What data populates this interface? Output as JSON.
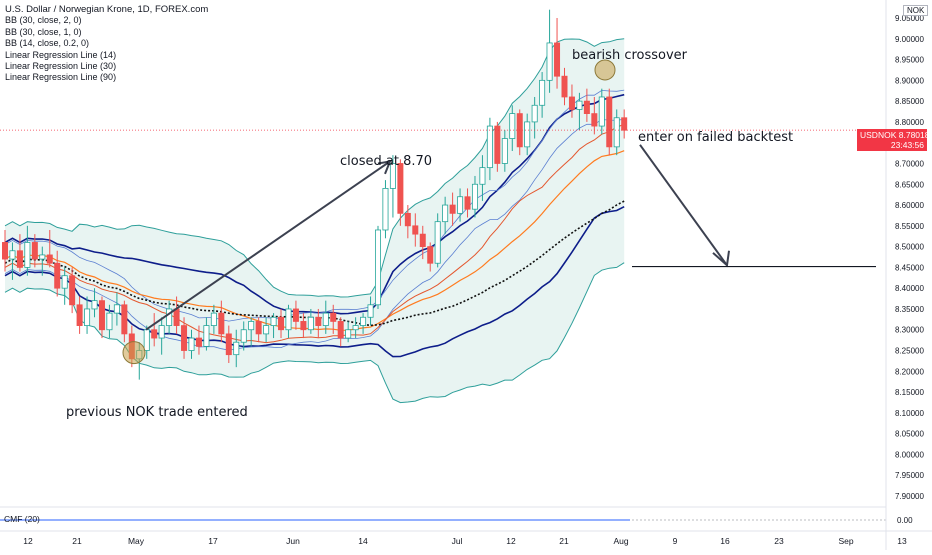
{
  "header": {
    "title": "U.S. Dollar / Norwegian Krone, 1D, FOREX.com",
    "indicators": [
      "BB (30, close, 2, 0)",
      "BB (30, close, 1, 0)",
      "BB (14, close, 0.2, 0)",
      "Linear Regression Line (14)",
      "Linear Regression Line (30)",
      "Linear Regression Line (90)"
    ],
    "currency_badge": "NOK"
  },
  "annotations": {
    "previous_trade": "previous NOK trade entered",
    "closed_at": "closed at 8.70",
    "bearish_crossover": "bearish crossover",
    "enter_failed_backtest": "enter on failed backtest"
  },
  "price_tag": {
    "symbol": "USDNOK",
    "price": "8.78018",
    "countdown": "23:43:56"
  },
  "cmf": {
    "label": "CMF (20)",
    "value_label": "0.00",
    "color": "#2962ff"
  },
  "colors": {
    "up": "#26a69a",
    "down": "#ef5350",
    "bb_outer": "#2e9f9a",
    "bb_fill": "#e6f3f1",
    "bb_basis": "#ff7b1f",
    "regression_fast": "#1f3fd0",
    "regression_slow": "#0d1d8a",
    "regression_90": "#101010",
    "price_line": "#f23645",
    "highlight": "#c9a14a"
  },
  "chart_data": {
    "type": "candlestick",
    "symbol": "USD/NOK",
    "y_ticks": [
      "9.05000",
      "9.00000",
      "8.95000",
      "8.90000",
      "8.85000",
      "8.80000",
      "8.75000",
      "8.70000",
      "8.65000",
      "8.60000",
      "8.55000",
      "8.50000",
      "8.45000",
      "8.40000",
      "8.35000",
      "8.30000",
      "8.25000",
      "8.20000",
      "8.15000",
      "8.10000",
      "8.05000",
      "8.00000",
      "7.95000",
      "7.90000"
    ],
    "ylim": [
      7.88,
      9.07
    ],
    "x_ticks": [
      "12",
      "21",
      "May",
      "17",
      "Jun",
      "14",
      "Jul",
      "12",
      "21",
      "Aug",
      "9",
      "16",
      "23",
      "Sep",
      "13"
    ],
    "candles": [
      {
        "o": 8.51,
        "h": 8.54,
        "l": 8.44,
        "c": 8.47
      },
      {
        "o": 8.47,
        "h": 8.51,
        "l": 8.42,
        "c": 8.49
      },
      {
        "o": 8.49,
        "h": 8.53,
        "l": 8.44,
        "c": 8.45
      },
      {
        "o": 8.45,
        "h": 8.55,
        "l": 8.43,
        "c": 8.51
      },
      {
        "o": 8.51,
        "h": 8.53,
        "l": 8.45,
        "c": 8.47
      },
      {
        "o": 8.47,
        "h": 8.5,
        "l": 8.43,
        "c": 8.48
      },
      {
        "o": 8.48,
        "h": 8.54,
        "l": 8.45,
        "c": 8.46
      },
      {
        "o": 8.46,
        "h": 8.49,
        "l": 8.38,
        "c": 8.4
      },
      {
        "o": 8.4,
        "h": 8.45,
        "l": 8.36,
        "c": 8.43
      },
      {
        "o": 8.43,
        "h": 8.45,
        "l": 8.34,
        "c": 8.36
      },
      {
        "o": 8.36,
        "h": 8.38,
        "l": 8.29,
        "c": 8.31
      },
      {
        "o": 8.31,
        "h": 8.38,
        "l": 8.29,
        "c": 8.35
      },
      {
        "o": 8.35,
        "h": 8.4,
        "l": 8.33,
        "c": 8.37
      },
      {
        "o": 8.37,
        "h": 8.38,
        "l": 8.28,
        "c": 8.3
      },
      {
        "o": 8.3,
        "h": 8.36,
        "l": 8.28,
        "c": 8.34
      },
      {
        "o": 8.34,
        "h": 8.39,
        "l": 8.31,
        "c": 8.36
      },
      {
        "o": 8.36,
        "h": 8.37,
        "l": 8.27,
        "c": 8.29
      },
      {
        "o": 8.29,
        "h": 8.31,
        "l": 8.21,
        "c": 8.23
      },
      {
        "o": 8.23,
        "h": 8.27,
        "l": 8.18,
        "c": 8.25
      },
      {
        "o": 8.25,
        "h": 8.31,
        "l": 8.23,
        "c": 8.3
      },
      {
        "o": 8.3,
        "h": 8.34,
        "l": 8.26,
        "c": 8.28
      },
      {
        "o": 8.28,
        "h": 8.33,
        "l": 8.24,
        "c": 8.31
      },
      {
        "o": 8.31,
        "h": 8.37,
        "l": 8.29,
        "c": 8.35
      },
      {
        "o": 8.35,
        "h": 8.38,
        "l": 8.29,
        "c": 8.31
      },
      {
        "o": 8.31,
        "h": 8.33,
        "l": 8.23,
        "c": 8.25
      },
      {
        "o": 8.25,
        "h": 8.3,
        "l": 8.23,
        "c": 8.28
      },
      {
        "o": 8.28,
        "h": 8.31,
        "l": 8.24,
        "c": 8.26
      },
      {
        "o": 8.26,
        "h": 8.33,
        "l": 8.25,
        "c": 8.31
      },
      {
        "o": 8.31,
        "h": 8.36,
        "l": 8.29,
        "c": 8.34
      },
      {
        "o": 8.34,
        "h": 8.37,
        "l": 8.27,
        "c": 8.29
      },
      {
        "o": 8.29,
        "h": 8.31,
        "l": 8.22,
        "c": 8.24
      },
      {
        "o": 8.24,
        "h": 8.3,
        "l": 8.21,
        "c": 8.27
      },
      {
        "o": 8.27,
        "h": 8.32,
        "l": 8.25,
        "c": 8.3
      },
      {
        "o": 8.3,
        "h": 8.33,
        "l": 8.26,
        "c": 8.32
      },
      {
        "o": 8.32,
        "h": 8.33,
        "l": 8.27,
        "c": 8.29
      },
      {
        "o": 8.29,
        "h": 8.33,
        "l": 8.27,
        "c": 8.31
      },
      {
        "o": 8.31,
        "h": 8.34,
        "l": 8.28,
        "c": 8.33
      },
      {
        "o": 8.33,
        "h": 8.35,
        "l": 8.28,
        "c": 8.3
      },
      {
        "o": 8.3,
        "h": 8.36,
        "l": 8.28,
        "c": 8.35
      },
      {
        "o": 8.35,
        "h": 8.37,
        "l": 8.3,
        "c": 8.32
      },
      {
        "o": 8.32,
        "h": 8.34,
        "l": 8.28,
        "c": 8.3
      },
      {
        "o": 8.3,
        "h": 8.35,
        "l": 8.29,
        "c": 8.33
      },
      {
        "o": 8.33,
        "h": 8.35,
        "l": 8.28,
        "c": 8.31
      },
      {
        "o": 8.31,
        "h": 8.37,
        "l": 8.29,
        "c": 8.34
      },
      {
        "o": 8.34,
        "h": 8.36,
        "l": 8.29,
        "c": 8.32
      },
      {
        "o": 8.32,
        "h": 8.33,
        "l": 8.26,
        "c": 8.28
      },
      {
        "o": 8.28,
        "h": 8.32,
        "l": 8.27,
        "c": 8.3
      },
      {
        "o": 8.3,
        "h": 8.33,
        "l": 8.28,
        "c": 8.31
      },
      {
        "o": 8.31,
        "h": 8.34,
        "l": 8.29,
        "c": 8.33
      },
      {
        "o": 8.33,
        "h": 8.38,
        "l": 8.31,
        "c": 8.36
      },
      {
        "o": 8.36,
        "h": 8.55,
        "l": 8.35,
        "c": 8.54
      },
      {
        "o": 8.54,
        "h": 8.66,
        "l": 8.52,
        "c": 8.64
      },
      {
        "o": 8.64,
        "h": 8.72,
        "l": 8.57,
        "c": 8.7
      },
      {
        "o": 8.7,
        "h": 8.71,
        "l": 8.55,
        "c": 8.58
      },
      {
        "o": 8.58,
        "h": 8.6,
        "l": 8.52,
        "c": 8.55
      },
      {
        "o": 8.55,
        "h": 8.58,
        "l": 8.5,
        "c": 8.53
      },
      {
        "o": 8.53,
        "h": 8.55,
        "l": 8.47,
        "c": 8.5
      },
      {
        "o": 8.5,
        "h": 8.51,
        "l": 8.44,
        "c": 8.46
      },
      {
        "o": 8.46,
        "h": 8.58,
        "l": 8.45,
        "c": 8.56
      },
      {
        "o": 8.56,
        "h": 8.62,
        "l": 8.53,
        "c": 8.6
      },
      {
        "o": 8.6,
        "h": 8.63,
        "l": 8.55,
        "c": 8.58
      },
      {
        "o": 8.58,
        "h": 8.64,
        "l": 8.56,
        "c": 8.62
      },
      {
        "o": 8.62,
        "h": 8.64,
        "l": 8.57,
        "c": 8.59
      },
      {
        "o": 8.59,
        "h": 8.67,
        "l": 8.57,
        "c": 8.65
      },
      {
        "o": 8.65,
        "h": 8.72,
        "l": 8.61,
        "c": 8.69
      },
      {
        "o": 8.69,
        "h": 8.81,
        "l": 8.66,
        "c": 8.79
      },
      {
        "o": 8.79,
        "h": 8.8,
        "l": 8.68,
        "c": 8.7
      },
      {
        "o": 8.7,
        "h": 8.78,
        "l": 8.68,
        "c": 8.76
      },
      {
        "o": 8.76,
        "h": 8.84,
        "l": 8.73,
        "c": 8.82
      },
      {
        "o": 8.82,
        "h": 8.83,
        "l": 8.72,
        "c": 8.74
      },
      {
        "o": 8.74,
        "h": 8.82,
        "l": 8.72,
        "c": 8.8
      },
      {
        "o": 8.8,
        "h": 8.86,
        "l": 8.76,
        "c": 8.84
      },
      {
        "o": 8.84,
        "h": 8.92,
        "l": 8.81,
        "c": 8.9
      },
      {
        "o": 8.9,
        "h": 9.07,
        "l": 8.87,
        "c": 8.99
      },
      {
        "o": 8.99,
        "h": 9.05,
        "l": 8.88,
        "c": 8.91
      },
      {
        "o": 8.91,
        "h": 8.93,
        "l": 8.84,
        "c": 8.86
      },
      {
        "o": 8.86,
        "h": 8.89,
        "l": 8.81,
        "c": 8.83
      },
      {
        "o": 8.83,
        "h": 8.87,
        "l": 8.78,
        "c": 8.85
      },
      {
        "o": 8.85,
        "h": 8.88,
        "l": 8.8,
        "c": 8.82
      },
      {
        "o": 8.82,
        "h": 8.86,
        "l": 8.77,
        "c": 8.79
      },
      {
        "o": 8.79,
        "h": 8.88,
        "l": 8.77,
        "c": 8.86
      },
      {
        "o": 8.86,
        "h": 8.88,
        "l": 8.72,
        "c": 8.74
      },
      {
        "o": 8.74,
        "h": 8.83,
        "l": 8.72,
        "c": 8.81
      },
      {
        "o": 8.81,
        "h": 8.83,
        "l": 8.76,
        "c": 8.78
      }
    ],
    "current_price": 8.78018,
    "levels": {
      "target_line": 8.452
    }
  }
}
